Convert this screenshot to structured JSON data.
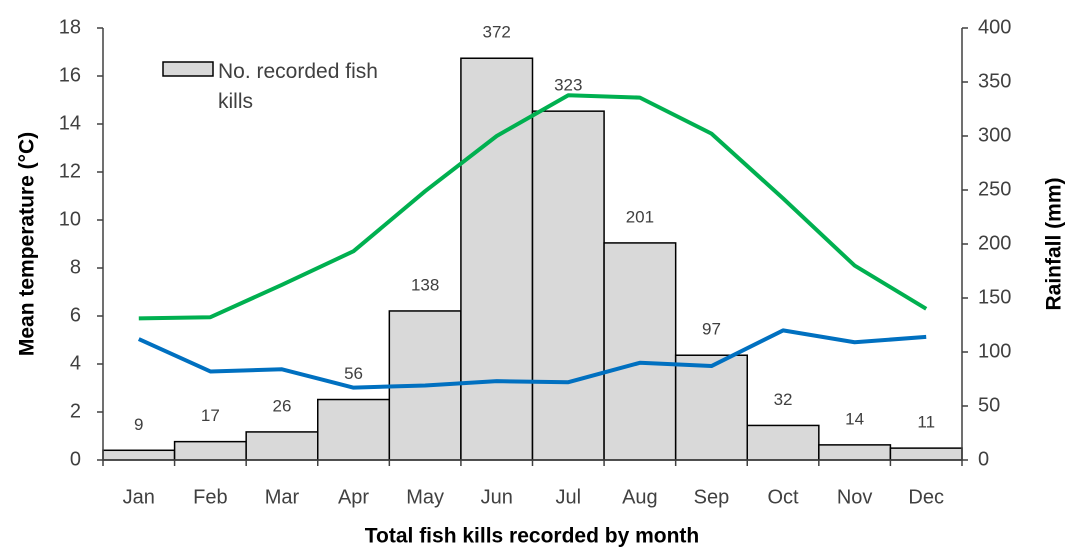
{
  "chart_data": {
    "type": "bar",
    "xlabel": "Total fish kills recorded by month",
    "ylabel": "Mean temperature (°C)",
    "y2label": "Rainfall (mm)",
    "categories": [
      "Jan",
      "Feb",
      "Mar",
      "Apr",
      "May",
      "Jun",
      "Jul",
      "Aug",
      "Sep",
      "Oct",
      "Nov",
      "Dec"
    ],
    "series": [
      {
        "name": "No. recorded fish kills",
        "type": "bar",
        "axis": "y2",
        "color": "#d9d9d9",
        "values": [
          9,
          17,
          26,
          56,
          138,
          372,
          323,
          201,
          97,
          32,
          14,
          11
        ]
      },
      {
        "type": "line",
        "axis": "y",
        "color": "#00b050",
        "values": [
          5.9,
          5.95,
          7.3,
          8.7,
          11.2,
          13.5,
          15.2,
          15.1,
          13.6,
          10.9,
          8.1,
          6.3
        ]
      },
      {
        "type": "line",
        "axis": "y2",
        "color": "#0070c0",
        "values": [
          112,
          82,
          84,
          67,
          69,
          73,
          72,
          90,
          87,
          120,
          109,
          114
        ]
      }
    ],
    "ylim": [
      0,
      18
    ],
    "yticks": [
      0,
      2,
      4,
      6,
      8,
      10,
      12,
      14,
      16,
      18
    ],
    "y2lim": [
      0,
      400
    ],
    "y2ticks": [
      0,
      50,
      100,
      150,
      200,
      250,
      300,
      350,
      400
    ],
    "legend": "upper left"
  }
}
